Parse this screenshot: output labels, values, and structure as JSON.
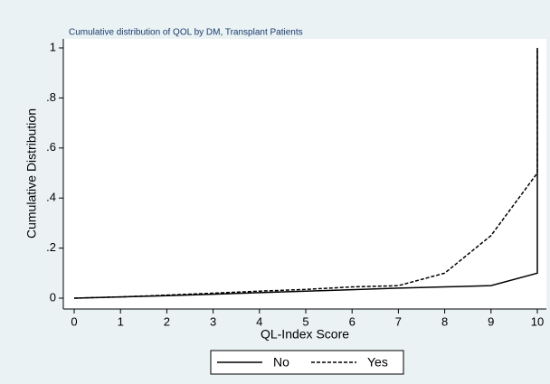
{
  "chart_data": {
    "type": "line",
    "title": "Cumulative distribution of QOL by DM, Transplant Patients",
    "x_label": "QL-Index Score",
    "y_label": "Cumulative Distribution",
    "x": [
      0,
      1,
      2,
      3,
      4,
      5,
      6,
      7,
      8,
      9,
      10,
      10
    ],
    "series": [
      {
        "name": "No",
        "color": "#000000",
        "linestyle": "solid",
        "values": [
          0,
          0.005,
          0.01,
          0.016,
          0.022,
          0.028,
          0.034,
          0.04,
          0.045,
          0.05,
          0.1,
          1
        ]
      },
      {
        "name": "Yes",
        "color": "#000000",
        "linestyle": "dashed",
        "values": [
          0,
          0.005,
          0.012,
          0.02,
          0.028,
          0.035,
          0.045,
          0.05,
          0.1,
          0.25,
          0.5,
          1
        ]
      }
    ],
    "xlim": [
      0,
      10
    ],
    "ylim": [
      0,
      1
    ],
    "xticks": [
      0,
      1,
      2,
      3,
      4,
      5,
      6,
      7,
      8,
      9,
      10
    ],
    "yticks": [
      0,
      {
        "value": 0.2,
        "label": ".2"
      },
      {
        "value": 0.4,
        "label": ".4"
      },
      {
        "value": 0.6,
        "label": ".6"
      },
      {
        "value": 0.8,
        "label": ".8"
      },
      1
    ],
    "grid": false,
    "legend": "bottom"
  }
}
